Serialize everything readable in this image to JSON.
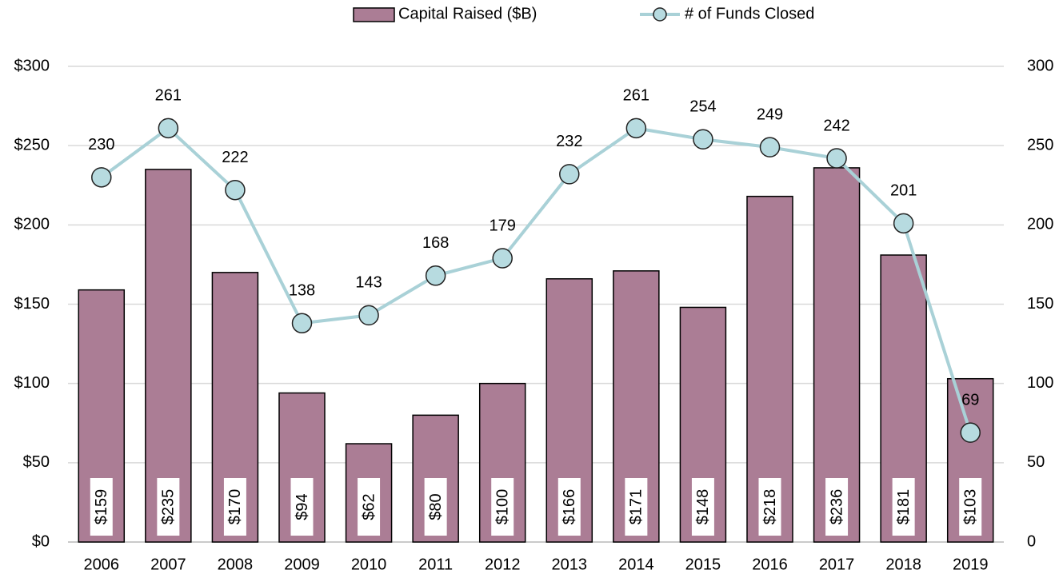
{
  "chart_data": {
    "type": "bar",
    "categories": [
      "2006",
      "2007",
      "2008",
      "2009",
      "2010",
      "2011",
      "2012",
      "2013",
      "2014",
      "2015",
      "2016",
      "2017",
      "2018",
      "2019"
    ],
    "series": [
      {
        "name": "Capital Raised ($B)",
        "type": "bar",
        "color": "#ab7d95",
        "axis": "y",
        "values": [
          159,
          235,
          170,
          94,
          62,
          80,
          100,
          166,
          171,
          148,
          218,
          236,
          181,
          103
        ],
        "value_labels": [
          "$159",
          "$235",
          "$170",
          "$94",
          "$62",
          "$80",
          "$100",
          "$166",
          "$171",
          "$148",
          "$218",
          "$236",
          "$181",
          "$103"
        ]
      },
      {
        "name": "# of Funds Closed",
        "type": "line",
        "color": "#a9d1d7",
        "axis": "y2",
        "values": [
          230,
          261,
          222,
          138,
          143,
          168,
          179,
          232,
          261,
          254,
          249,
          242,
          201,
          69
        ]
      }
    ],
    "ylim": [
      0,
      300
    ],
    "yticks": [
      {
        "value": 0,
        "label": "$0"
      },
      {
        "value": 50,
        "label": "$50"
      },
      {
        "value": 100,
        "label": "$100"
      },
      {
        "value": 150,
        "label": "$150"
      },
      {
        "value": 200,
        "label": "$200"
      },
      {
        "value": 250,
        "label": "$250"
      },
      {
        "value": 300,
        "label": "$300"
      }
    ],
    "y2lim": [
      0,
      300
    ],
    "y2ticks": [
      0,
      50,
      100,
      150,
      200,
      250,
      300
    ],
    "grid": true,
    "legend": "top"
  }
}
